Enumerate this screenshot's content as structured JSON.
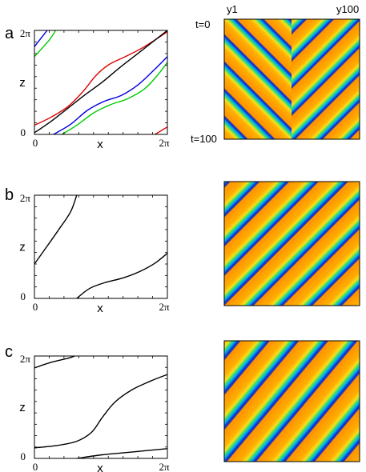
{
  "figure": {
    "panel_letters": [
      "a",
      "b",
      "c"
    ],
    "top_labels": {
      "left": "y1",
      "right": "y100"
    },
    "time_labels": {
      "start": "t=0",
      "end": "t=100"
    }
  },
  "colors": {
    "red": "#e00000",
    "blue": "#0000e0",
    "green": "#00cc00",
    "black": "#000000"
  },
  "chart_data": [
    {
      "type": "line",
      "panel": "a",
      "xlabel": "x",
      "ylabel": "z",
      "xlim": [
        0,
        6.2832
      ],
      "ylim": [
        0,
        6.2832
      ],
      "xticklabels": [
        "0",
        "2π"
      ],
      "yticklabels": [
        "0",
        "2π"
      ],
      "series": [
        {
          "color": "red",
          "segments": [
            [
              [
                0,
                0.55
              ],
              [
                0.8,
                1.05
              ],
              [
                1.6,
                1.7
              ],
              [
                2.3,
                2.6
              ],
              [
                2.9,
                3.55
              ],
              [
                3.5,
                4.2
              ],
              [
                4.3,
                4.7
              ],
              [
                5.2,
                5.3
              ],
              [
                6.2832,
                6.2
              ]
            ],
            [
              [
                5.7,
                0
              ],
              [
                6.2832,
                0.45
              ]
            ]
          ]
        },
        {
          "color": "black",
          "segments": [
            [
              [
                0,
                0.1
              ],
              [
                0.8,
                0.8
              ],
              [
                1.6,
                1.6
              ],
              [
                2.4,
                2.4
              ],
              [
                3.2,
                3.15
              ],
              [
                4.0,
                4.0
              ],
              [
                4.8,
                4.8
              ],
              [
                5.6,
                5.6
              ],
              [
                6.2832,
                6.2832
              ]
            ]
          ]
        },
        {
          "color": "blue",
          "segments": [
            [
              [
                0,
                5.3
              ],
              [
                0.6,
                6.2832
              ]
            ],
            [
              [
                0.9,
                0
              ],
              [
                1.7,
                0.6
              ],
              [
                2.5,
                1.45
              ],
              [
                3.3,
                2.0
              ],
              [
                4.1,
                2.35
              ],
              [
                4.9,
                3.0
              ],
              [
                5.7,
                3.95
              ],
              [
                6.2832,
                4.7
              ]
            ]
          ]
        },
        {
          "color": "green",
          "segments": [
            [
              [
                0,
                4.7
              ],
              [
                0.7,
                5.7
              ],
              [
                1.0,
                6.2832
              ]
            ],
            [
              [
                1.3,
                0
              ],
              [
                2.0,
                0.55
              ],
              [
                2.8,
                1.3
              ],
              [
                3.6,
                1.8
              ],
              [
                4.4,
                2.15
              ],
              [
                5.2,
                2.75
              ],
              [
                5.8,
                3.55
              ],
              [
                6.2832,
                4.35
              ]
            ]
          ]
        }
      ]
    },
    {
      "type": "line",
      "panel": "b",
      "xlabel": "x",
      "ylabel": "z",
      "xlim": [
        0,
        6.2832
      ],
      "ylim": [
        0,
        6.2832
      ],
      "xticklabels": [
        "0",
        "2π"
      ],
      "yticklabels": [
        "0",
        "2π"
      ],
      "series": [
        {
          "color": "black",
          "segments": [
            [
              [
                0,
                2.1
              ],
              [
                0.5,
                3.0
              ],
              [
                1.1,
                4.1
              ],
              [
                1.7,
                5.25
              ],
              [
                2.0,
                6.2832
              ]
            ],
            [
              [
                2.0,
                0
              ],
              [
                2.6,
                0.6
              ],
              [
                3.3,
                0.95
              ],
              [
                4.2,
                1.25
              ],
              [
                5.0,
                1.65
              ],
              [
                5.7,
                2.15
              ],
              [
                6.2832,
                2.75
              ]
            ]
          ]
        }
      ]
    },
    {
      "type": "line",
      "panel": "c",
      "xlabel": "x",
      "ylabel": "z",
      "xlim": [
        0,
        6.2832
      ],
      "ylim": [
        0,
        6.2832
      ],
      "xticklabels": [
        "0",
        "2π"
      ],
      "yticklabels": [
        "0",
        "2π"
      ],
      "series": [
        {
          "color": "black",
          "segments": [
            [
              [
                0,
                5.55
              ],
              [
                0.8,
                5.9
              ],
              [
                1.6,
                6.15
              ],
              [
                1.9,
                6.2832
              ]
            ],
            [
              [
                0,
                0.65
              ],
              [
                1.0,
                0.78
              ],
              [
                2.0,
                1.05
              ],
              [
                2.7,
                1.6
              ],
              [
                3.2,
                2.5
              ],
              [
                3.8,
                3.45
              ],
              [
                4.6,
                4.2
              ],
              [
                5.5,
                4.75
              ],
              [
                6.2832,
                5.15
              ]
            ],
            [
              [
                2.0,
                0
              ],
              [
                3.2,
                0.22
              ],
              [
                4.5,
                0.38
              ],
              [
                6.2832,
                0.6
              ]
            ]
          ]
        }
      ]
    },
    {
      "type": "heatmap",
      "panel": "a",
      "pattern": "chevron",
      "x_range": [
        "y1",
        "y100"
      ],
      "y_range": [
        "t=0",
        "t=100"
      ],
      "colors": [
        "#1020d0",
        "#00a0f0",
        "#30e060",
        "#f0e020",
        "#ffa000",
        "#ff8000"
      ]
    },
    {
      "type": "heatmap",
      "panel": "b",
      "pattern": "diagonal-travelling-waves",
      "colors": [
        "#1020d0",
        "#00a0f0",
        "#30e060",
        "#f0e020",
        "#ffa000",
        "#ff8000"
      ]
    },
    {
      "type": "heatmap",
      "panel": "c",
      "pattern": "diagonal-travelling-waves",
      "colors": [
        "#1020d0",
        "#00a0f0",
        "#30e060",
        "#f0e020",
        "#ffa000",
        "#ff8000"
      ]
    }
  ]
}
